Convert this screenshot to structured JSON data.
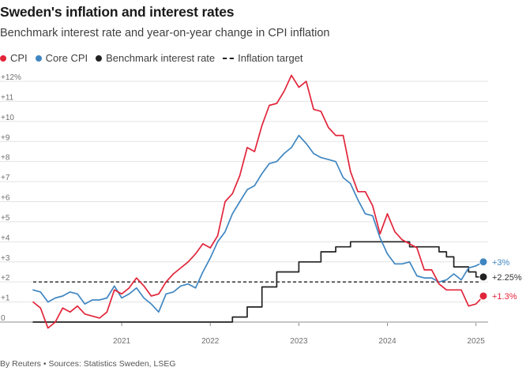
{
  "chart_data": {
    "type": "line",
    "title": "Sweden's inflation and interest rates",
    "subtitle": "Benchmark interest rate and year-on-year change in CPI inflation",
    "y_ticks": [
      "+12%",
      "+11",
      "+10",
      "+9",
      "+8",
      "+7",
      "+6",
      "+5",
      "+4",
      "+3",
      "+2",
      "+1",
      "0"
    ],
    "y_tick_values": [
      12,
      11,
      10,
      9,
      8,
      7,
      6,
      5,
      4,
      3,
      2,
      1,
      0
    ],
    "ylim": [
      0,
      12
    ],
    "x_ticks": [
      "2021",
      "2022",
      "2023",
      "2024",
      "2025"
    ],
    "x_tick_values": [
      "2021-01",
      "2022-01",
      "2023-01",
      "2024-01",
      "2025-01"
    ],
    "x_range": [
      "2020-01",
      "2025-02"
    ],
    "grid": true,
    "legend_placement": "top-left",
    "series": [
      {
        "name": "CPI",
        "color": "#e1253a",
        "end_label": "+1.3%",
        "points": [
          [
            "2020-01",
            1.0
          ],
          [
            "2020-02",
            0.7
          ],
          [
            "2020-03",
            -0.3
          ],
          [
            "2020-04",
            0.0
          ],
          [
            "2020-05",
            0.7
          ],
          [
            "2020-06",
            0.5
          ],
          [
            "2020-07",
            0.8
          ],
          [
            "2020-08",
            0.4
          ],
          [
            "2020-09",
            0.3
          ],
          [
            "2020-10",
            0.2
          ],
          [
            "2020-11",
            0.5
          ],
          [
            "2020-12",
            1.6
          ],
          [
            "2021-01",
            1.4
          ],
          [
            "2021-02",
            1.7
          ],
          [
            "2021-03",
            2.2
          ],
          [
            "2021-04",
            1.8
          ],
          [
            "2021-05",
            1.3
          ],
          [
            "2021-06",
            1.4
          ],
          [
            "2021-07",
            2.0
          ],
          [
            "2021-08",
            2.4
          ],
          [
            "2021-09",
            2.7
          ],
          [
            "2021-10",
            3.0
          ],
          [
            "2021-11",
            3.4
          ],
          [
            "2021-12",
            3.9
          ],
          [
            "2022-01",
            3.7
          ],
          [
            "2022-02",
            4.3
          ],
          [
            "2022-03",
            6.0
          ],
          [
            "2022-04",
            6.4
          ],
          [
            "2022-05",
            7.3
          ],
          [
            "2022-06",
            8.7
          ],
          [
            "2022-07",
            8.5
          ],
          [
            "2022-08",
            9.8
          ],
          [
            "2022-09",
            10.8
          ],
          [
            "2022-10",
            10.9
          ],
          [
            "2022-11",
            11.5
          ],
          [
            "2022-12",
            12.3
          ],
          [
            "2023-01",
            11.7
          ],
          [
            "2023-02",
            12.0
          ],
          [
            "2023-03",
            10.6
          ],
          [
            "2023-04",
            10.5
          ],
          [
            "2023-05",
            9.7
          ],
          [
            "2023-06",
            9.3
          ],
          [
            "2023-07",
            9.3
          ],
          [
            "2023-08",
            7.5
          ],
          [
            "2023-09",
            6.5
          ],
          [
            "2023-10",
            6.5
          ],
          [
            "2023-11",
            5.8
          ],
          [
            "2023-12",
            4.4
          ],
          [
            "2024-01",
            5.4
          ],
          [
            "2024-02",
            4.5
          ],
          [
            "2024-03",
            4.1
          ],
          [
            "2024-04",
            3.9
          ],
          [
            "2024-05",
            3.7
          ],
          [
            "2024-06",
            2.6
          ],
          [
            "2024-07",
            2.6
          ],
          [
            "2024-08",
            1.9
          ],
          [
            "2024-09",
            1.6
          ],
          [
            "2024-10",
            1.6
          ],
          [
            "2024-11",
            1.6
          ],
          [
            "2024-12",
            0.8
          ],
          [
            "2025-01",
            0.9
          ],
          [
            "2025-02",
            1.3
          ]
        ]
      },
      {
        "name": "Core CPI",
        "color": "#3f86c1",
        "end_label": "+3%",
        "points": [
          [
            "2020-01",
            1.6
          ],
          [
            "2020-02",
            1.5
          ],
          [
            "2020-03",
            1.0
          ],
          [
            "2020-04",
            1.2
          ],
          [
            "2020-05",
            1.3
          ],
          [
            "2020-06",
            1.5
          ],
          [
            "2020-07",
            1.4
          ],
          [
            "2020-08",
            0.9
          ],
          [
            "2020-09",
            1.1
          ],
          [
            "2020-10",
            1.1
          ],
          [
            "2020-11",
            1.2
          ],
          [
            "2020-12",
            1.8
          ],
          [
            "2021-01",
            1.2
          ],
          [
            "2021-02",
            1.4
          ],
          [
            "2021-03",
            1.7
          ],
          [
            "2021-04",
            1.2
          ],
          [
            "2021-05",
            0.9
          ],
          [
            "2021-06",
            0.5
          ],
          [
            "2021-07",
            1.4
          ],
          [
            "2021-08",
            1.5
          ],
          [
            "2021-09",
            1.8
          ],
          [
            "2021-10",
            1.9
          ],
          [
            "2021-11",
            1.7
          ],
          [
            "2021-12",
            2.5
          ],
          [
            "2022-01",
            3.2
          ],
          [
            "2022-02",
            4.0
          ],
          [
            "2022-03",
            4.5
          ],
          [
            "2022-04",
            5.4
          ],
          [
            "2022-05",
            6.0
          ],
          [
            "2022-06",
            6.6
          ],
          [
            "2022-07",
            6.8
          ],
          [
            "2022-08",
            7.4
          ],
          [
            "2022-09",
            7.9
          ],
          [
            "2022-10",
            8.0
          ],
          [
            "2022-11",
            8.4
          ],
          [
            "2022-12",
            8.7
          ],
          [
            "2023-01",
            9.3
          ],
          [
            "2023-02",
            8.9
          ],
          [
            "2023-03",
            8.4
          ],
          [
            "2023-04",
            8.2
          ],
          [
            "2023-05",
            8.1
          ],
          [
            "2023-06",
            8.0
          ],
          [
            "2023-07",
            7.2
          ],
          [
            "2023-08",
            6.9
          ],
          [
            "2023-09",
            6.1
          ],
          [
            "2023-10",
            5.4
          ],
          [
            "2023-11",
            5.3
          ],
          [
            "2023-12",
            4.2
          ],
          [
            "2024-01",
            3.4
          ],
          [
            "2024-02",
            2.9
          ],
          [
            "2024-03",
            2.9
          ],
          [
            "2024-04",
            3.0
          ],
          [
            "2024-05",
            2.3
          ],
          [
            "2024-06",
            2.2
          ],
          [
            "2024-07",
            2.2
          ],
          [
            "2024-08",
            2.0
          ],
          [
            "2024-09",
            2.1
          ],
          [
            "2024-10",
            2.4
          ],
          [
            "2024-11",
            2.1
          ],
          [
            "2024-12",
            2.7
          ],
          [
            "2025-01",
            2.8
          ],
          [
            "2025-02",
            3.0
          ]
        ]
      },
      {
        "name": "Benchmark interest rate",
        "color": "#222222",
        "end_label": "+2.25%",
        "step": true,
        "points": [
          [
            "2020-01",
            0.0
          ],
          [
            "2022-04",
            0.0
          ],
          [
            "2022-04",
            0.25
          ],
          [
            "2022-06",
            0.25
          ],
          [
            "2022-06",
            0.75
          ],
          [
            "2022-08",
            0.75
          ],
          [
            "2022-08",
            1.75
          ],
          [
            "2022-10",
            1.75
          ],
          [
            "2022-10",
            2.5
          ],
          [
            "2023-01",
            2.5
          ],
          [
            "2023-01",
            3.0
          ],
          [
            "2023-04",
            3.0
          ],
          [
            "2023-04",
            3.5
          ],
          [
            "2023-06",
            3.5
          ],
          [
            "2023-06",
            3.75
          ],
          [
            "2023-08",
            3.75
          ],
          [
            "2023-08",
            4.0
          ],
          [
            "2024-04",
            4.0
          ],
          [
            "2024-04",
            3.75
          ],
          [
            "2024-08",
            3.75
          ],
          [
            "2024-08",
            3.5
          ],
          [
            "2024-09",
            3.5
          ],
          [
            "2024-09",
            3.25
          ],
          [
            "2024-10",
            3.25
          ],
          [
            "2024-10",
            2.75
          ],
          [
            "2024-12",
            2.75
          ],
          [
            "2024-12",
            2.5
          ],
          [
            "2025-01",
            2.5
          ],
          [
            "2025-01",
            2.25
          ],
          [
            "2025-02",
            2.25
          ]
        ]
      }
    ],
    "target": {
      "name": "Inflation target",
      "value": 2,
      "color": "#222222"
    },
    "footer": "By Reuters • Sources: Statistics Sweden, LSEG"
  },
  "legend": [
    {
      "label": "CPI",
      "color": "#e1253a",
      "kind": "dot"
    },
    {
      "label": "Core CPI",
      "color": "#3f86c1",
      "kind": "dot"
    },
    {
      "label": "Benchmark interest rate",
      "color": "#222222",
      "kind": "dot"
    },
    {
      "label": "Inflation target",
      "color": "#222222",
      "kind": "dash"
    }
  ]
}
